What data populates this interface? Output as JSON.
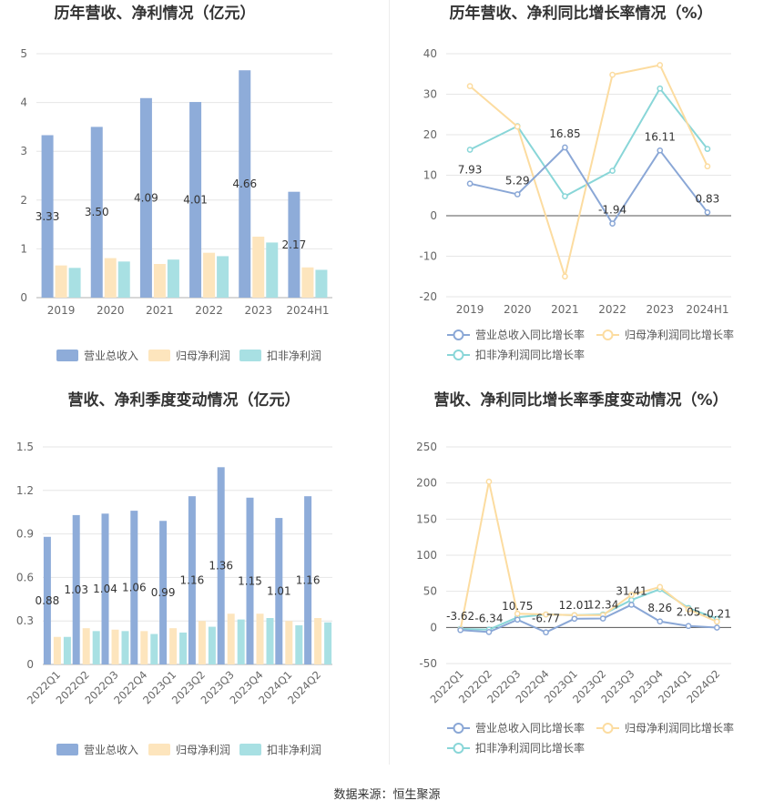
{
  "footer": "数据来源：恒生聚源",
  "colors": {
    "revenue": "#8eacd9",
    "parent_profit": "#fde5bd",
    "deducted_profit": "#a8e0e3",
    "revenue_line": "#8aa7d6",
    "parent_line": "#fcdca0",
    "deducted_line": "#89d6d8"
  },
  "chart_data": [
    {
      "type": "bar",
      "title": "历年营收、净利情况（亿元）",
      "categories": [
        "2019",
        "2020",
        "2021",
        "2022",
        "2023",
        "2024H1"
      ],
      "ylim": [
        0,
        5
      ],
      "yticks": [
        "0",
        "1",
        "2",
        "3",
        "4",
        "5"
      ],
      "series": [
        {
          "name": "营业总收入",
          "values": [
            3.33,
            3.5,
            4.09,
            4.01,
            4.66,
            2.17
          ],
          "labels": [
            "3.33",
            "3.50",
            "4.09",
            "4.01",
            "4.66",
            "2.17"
          ]
        },
        {
          "name": "归母净利润",
          "values": [
            0.66,
            0.81,
            0.69,
            0.92,
            1.25,
            0.62
          ]
        },
        {
          "name": "扣非净利润",
          "values": [
            0.61,
            0.74,
            0.78,
            0.85,
            1.13,
            0.57
          ]
        }
      ],
      "legend": "bottom",
      "grid": true
    },
    {
      "type": "line",
      "title": "历年营收、净利同比增长率情况（%）",
      "categories": [
        "2019",
        "2020",
        "2021",
        "2022",
        "2023",
        "2024H1"
      ],
      "ylim": [
        -20,
        40
      ],
      "yticks": [
        "-20",
        "-10",
        "0",
        "10",
        "20",
        "30",
        "40"
      ],
      "series": [
        {
          "name": "营业总收入同比增长率",
          "values": [
            7.93,
            5.29,
            16.85,
            -1.94,
            16.11,
            0.83
          ],
          "labels": [
            "7.93",
            "5.29",
            "16.85",
            "-1.94",
            "16.11",
            "0.83"
          ]
        },
        {
          "name": "归母净利润同比增长率",
          "values": [
            32.0,
            22.0,
            -15.0,
            34.8,
            37.2,
            12.2
          ]
        },
        {
          "name": "扣非净利润同比增长率",
          "values": [
            16.3,
            22.1,
            4.8,
            11.1,
            31.4,
            16.5
          ]
        }
      ],
      "legend": "bottom",
      "grid": true
    },
    {
      "type": "bar",
      "title": "营收、净利季度变动情况（亿元）",
      "categories": [
        "2022Q1",
        "2022Q2",
        "2022Q3",
        "2022Q4",
        "2023Q1",
        "2023Q2",
        "2023Q3",
        "2023Q4",
        "2024Q1",
        "2024Q2"
      ],
      "ylim": [
        0,
        1.5
      ],
      "yticks": [
        "0",
        "0.3",
        "0.6",
        "0.9",
        "1.2",
        "1.5"
      ],
      "series": [
        {
          "name": "营业总收入",
          "values": [
            0.88,
            1.03,
            1.04,
            1.06,
            0.99,
            1.16,
            1.36,
            1.15,
            1.01,
            1.16
          ],
          "labels": [
            "0.88",
            "1.03",
            "1.04",
            "1.06",
            "0.99",
            "1.16",
            "1.36",
            "1.15",
            "1.01",
            "1.16"
          ]
        },
        {
          "name": "归母净利润",
          "values": [
            0.19,
            0.25,
            0.24,
            0.23,
            0.25,
            0.3,
            0.35,
            0.35,
            0.3,
            0.32
          ]
        },
        {
          "name": "扣非净利润",
          "values": [
            0.19,
            0.23,
            0.23,
            0.21,
            0.22,
            0.26,
            0.31,
            0.32,
            0.27,
            0.29
          ]
        }
      ],
      "legend": "bottom",
      "grid": true
    },
    {
      "type": "line",
      "title": "营收、净利同比增长率季度变动情况（%）",
      "categories": [
        "2022Q1",
        "2022Q2",
        "2022Q3",
        "2022Q4",
        "2023Q1",
        "2023Q2",
        "2023Q3",
        "2023Q4",
        "2024Q1",
        "2024Q2"
      ],
      "ylim": [
        -50,
        250
      ],
      "yticks": [
        "-50",
        "0",
        "50",
        "100",
        "150",
        "200",
        "250"
      ],
      "series": [
        {
          "name": "营业总收入同比增长率",
          "values": [
            -3.62,
            -6.34,
            10.75,
            -6.77,
            12.01,
            12.34,
            31.41,
            8.26,
            2.05,
            -0.21
          ],
          "labels": [
            "-3.62",
            "-6.34",
            "10.75",
            "-6.77",
            "12.01",
            "12.34",
            "31.41",
            "8.26",
            "2.05",
            "-0.21"
          ]
        },
        {
          "name": "归母净利润同比增长率",
          "values": [
            -3.0,
            202.0,
            19.0,
            18.0,
            17.0,
            17.0,
            45.0,
            56.0,
            25.0,
            8.0
          ]
        },
        {
          "name": "扣非净利润同比增长率",
          "values": [
            -2.0,
            -3.0,
            14.0,
            18.0,
            17.0,
            18.0,
            38.0,
            53.0,
            27.0,
            12.0
          ]
        }
      ],
      "legend": "bottom",
      "grid": true
    }
  ]
}
